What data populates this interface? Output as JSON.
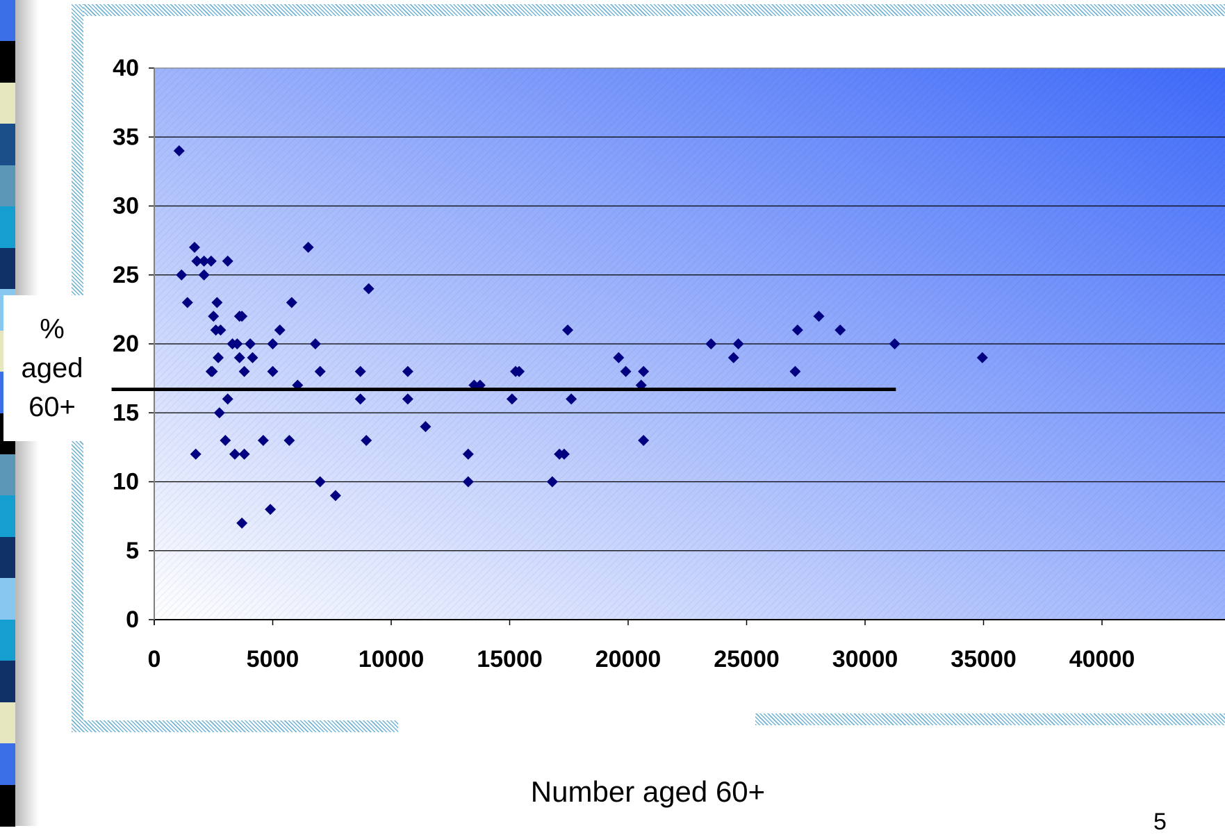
{
  "chart_data": {
    "type": "scatter",
    "title": "",
    "xlabel": "Number aged 60+",
    "ylabel": "% aged 60+",
    "xlim": [
      0,
      40000
    ],
    "ylim": [
      0,
      40
    ],
    "x_ticks": [
      "0",
      "5000",
      "10000",
      "15000",
      "20000",
      "25000",
      "30000",
      "35000",
      "40000"
    ],
    "y_ticks": [
      "0",
      "5",
      "10",
      "15",
      "20",
      "25",
      "30",
      "35",
      "40"
    ],
    "grid": "horizontal",
    "legend": "none",
    "reference_line": {
      "y": 16.7,
      "x_start": -1800,
      "x_end": 31300
    },
    "marker_color": "#000080",
    "points": [
      {
        "x": 1050,
        "y": 34
      },
      {
        "x": 1150,
        "y": 25
      },
      {
        "x": 1400,
        "y": 23
      },
      {
        "x": 1700,
        "y": 27
      },
      {
        "x": 1750,
        "y": 12
      },
      {
        "x": 1800,
        "y": 26
      },
      {
        "x": 2100,
        "y": 26
      },
      {
        "x": 2100,
        "y": 25
      },
      {
        "x": 2400,
        "y": 26
      },
      {
        "x": 2400,
        "y": 18
      },
      {
        "x": 2450,
        "y": 18
      },
      {
        "x": 2500,
        "y": 22
      },
      {
        "x": 2600,
        "y": 21
      },
      {
        "x": 2650,
        "y": 23
      },
      {
        "x": 2700,
        "y": 19
      },
      {
        "x": 2750,
        "y": 15
      },
      {
        "x": 2800,
        "y": 21
      },
      {
        "x": 3000,
        "y": 13
      },
      {
        "x": 3100,
        "y": 26
      },
      {
        "x": 3100,
        "y": 16
      },
      {
        "x": 3300,
        "y": 20
      },
      {
        "x": 3400,
        "y": 12
      },
      {
        "x": 3500,
        "y": 20
      },
      {
        "x": 3600,
        "y": 22
      },
      {
        "x": 3600,
        "y": 19
      },
      {
        "x": 3700,
        "y": 22
      },
      {
        "x": 3700,
        "y": 7
      },
      {
        "x": 3800,
        "y": 18
      },
      {
        "x": 3800,
        "y": 12
      },
      {
        "x": 4050,
        "y": 20
      },
      {
        "x": 4150,
        "y": 19
      },
      {
        "x": 4600,
        "y": 13
      },
      {
        "x": 4900,
        "y": 8
      },
      {
        "x": 5000,
        "y": 20
      },
      {
        "x": 5000,
        "y": 18
      },
      {
        "x": 5300,
        "y": 21
      },
      {
        "x": 5700,
        "y": 13
      },
      {
        "x": 5800,
        "y": 23
      },
      {
        "x": 6050,
        "y": 17
      },
      {
        "x": 6500,
        "y": 27
      },
      {
        "x": 6800,
        "y": 20
      },
      {
        "x": 7000,
        "y": 18
      },
      {
        "x": 7000,
        "y": 10
      },
      {
        "x": 7650,
        "y": 9
      },
      {
        "x": 8700,
        "y": 18
      },
      {
        "x": 8700,
        "y": 16
      },
      {
        "x": 8950,
        "y": 13
      },
      {
        "x": 9050,
        "y": 24
      },
      {
        "x": 10700,
        "y": 18
      },
      {
        "x": 10700,
        "y": 16
      },
      {
        "x": 11450,
        "y": 14
      },
      {
        "x": 13250,
        "y": 12
      },
      {
        "x": 13250,
        "y": 10
      },
      {
        "x": 13500,
        "y": 17
      },
      {
        "x": 13750,
        "y": 17
      },
      {
        "x": 15100,
        "y": 16
      },
      {
        "x": 15250,
        "y": 18
      },
      {
        "x": 15400,
        "y": 18
      },
      {
        "x": 16800,
        "y": 10
      },
      {
        "x": 17100,
        "y": 12
      },
      {
        "x": 17300,
        "y": 12
      },
      {
        "x": 17450,
        "y": 21
      },
      {
        "x": 17600,
        "y": 16
      },
      {
        "x": 19600,
        "y": 19
      },
      {
        "x": 19900,
        "y": 18
      },
      {
        "x": 20550,
        "y": 17
      },
      {
        "x": 20650,
        "y": 18
      },
      {
        "x": 20650,
        "y": 13
      },
      {
        "x": 23500,
        "y": 20
      },
      {
        "x": 24450,
        "y": 19
      },
      {
        "x": 24650,
        "y": 20
      },
      {
        "x": 27050,
        "y": 18
      },
      {
        "x": 27150,
        "y": 21
      },
      {
        "x": 28050,
        "y": 22
      },
      {
        "x": 28950,
        "y": 21
      },
      {
        "x": 31250,
        "y": 20
      },
      {
        "x": 34950,
        "y": 19
      }
    ]
  },
  "slide": {
    "ylabel_lines": [
      "%",
      "aged",
      "60+"
    ],
    "xlabel": "Number aged 60+",
    "page_number": "5",
    "plot_gradient": [
      "#ffffff",
      "#3e6afa"
    ],
    "strip_colors": [
      "#3a6fe8",
      "#000000",
      "#e6e6bf",
      "#1b4f8a",
      "#5b98b8",
      "#159fd0",
      "#0f3166",
      "#88c8f0",
      "#e6e6bf",
      "#3a6fe8",
      "#000000",
      "#5b98b8",
      "#159fd0",
      "#0f3166",
      "#88c8f0",
      "#159fd0",
      "#0f3166",
      "#e6e6bf",
      "#3a6fe8",
      "#000000"
    ]
  }
}
